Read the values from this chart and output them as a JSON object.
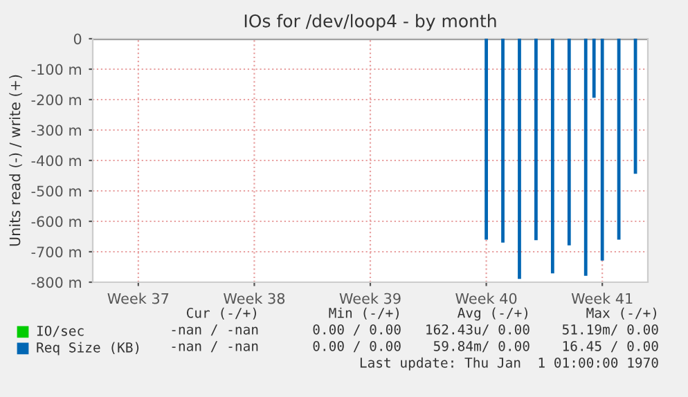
{
  "chart_data": {
    "type": "bar",
    "title": "IOs for /dev/loop4 - by month",
    "ylabel": "Units read (-) / write (+)",
    "categories": [
      null,
      null,
      null,
      null,
      null,
      "Week 37",
      null,
      null,
      null,
      null,
      null,
      null,
      null,
      null,
      null,
      null,
      null,
      null,
      null,
      "Week 38",
      null,
      null,
      null,
      null,
      null,
      null,
      null,
      null,
      null,
      null,
      null,
      null,
      null,
      "Week 39",
      null,
      null,
      null,
      null,
      null,
      null,
      null,
      null,
      null,
      null,
      null,
      null,
      null,
      "Week 40",
      null,
      null,
      null,
      null,
      null,
      null,
      null,
      null,
      null,
      null,
      null,
      null,
      null,
      "Week 41",
      null,
      null,
      null,
      null,
      null
    ],
    "series": [
      {
        "name": "IO/sec",
        "color": "#00cc00",
        "values": [
          null,
          null,
          null,
          null,
          null,
          null,
          null,
          null,
          null,
          null,
          null,
          null,
          null,
          null,
          null,
          null,
          null,
          null,
          null,
          null,
          null,
          null,
          null,
          null,
          null,
          null,
          null,
          null,
          null,
          null,
          null,
          null,
          null,
          null,
          null,
          null,
          null,
          null,
          null,
          null,
          null,
          null,
          null,
          null,
          null,
          null,
          null,
          null,
          null,
          null,
          null,
          null,
          null,
          null,
          null,
          null,
          null,
          null,
          null,
          null,
          null,
          null,
          null,
          null,
          null,
          null,
          null
        ]
      },
      {
        "name": "Req Size (KB)",
        "color": "#0066b3",
        "values": [
          0,
          0,
          0,
          0,
          0,
          0,
          0,
          0,
          0,
          0,
          0,
          0,
          0,
          0,
          0,
          0,
          0,
          0,
          0,
          0,
          0,
          0,
          0,
          0,
          0,
          0,
          0,
          0,
          0,
          0,
          0,
          0,
          0,
          0,
          0,
          0,
          0,
          0,
          0,
          0,
          0,
          0,
          0,
          0,
          0,
          0,
          0,
          -660,
          0,
          -670,
          0,
          -789,
          0,
          -662,
          0,
          -771,
          0,
          -679,
          0,
          -779,
          -194,
          -729,
          0,
          -660,
          0,
          -444,
          0
        ]
      }
    ],
    "ylim": [
      -800,
      0
    ],
    "yticks": [
      {
        "value": -800,
        "label": "-800 m"
      },
      {
        "value": -700,
        "label": "-700 m"
      },
      {
        "value": -600,
        "label": "-600 m"
      },
      {
        "value": -500,
        "label": "-500 m"
      },
      {
        "value": -400,
        "label": "-400 m"
      },
      {
        "value": -300,
        "label": "-300 m"
      },
      {
        "value": -200,
        "label": "-200 m"
      },
      {
        "value": -100,
        "label": "-100 m"
      },
      0
    ],
    "ref_lines": [
      {
        "axis": "y",
        "value": 0,
        "color": "#000000"
      }
    ],
    "grid": true,
    "legend": "bottom",
    "annotations": [
      "Cur (-/+)",
      "Min (-/+)",
      "Avg (-/+)",
      "Max (-/+)",
      "-nan / -nan",
      "0.00 / 0.00",
      "162.43u/ 0.00",
      "51.19m/ 0.00",
      "-nan / -nan",
      "0.00 / 0.00",
      "59.84m/ 0.00",
      "16.45 / 0.00",
      "Last update: Thu Jan  1 01:00:00 1970"
    ]
  }
}
